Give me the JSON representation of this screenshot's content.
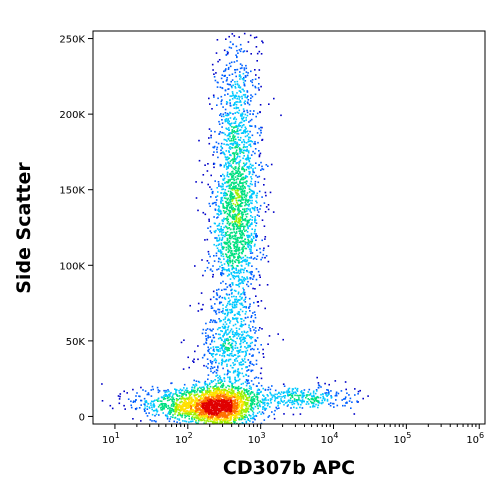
{
  "chart_data": {
    "type": "scatter",
    "subtype": "flow-cytometry-density-dot-plot",
    "xlabel": "CD307b APC",
    "ylabel": "Side Scatter",
    "x_scale": "log",
    "y_scale": "linear",
    "xlim": [
      5,
      1200000
    ],
    "ylim": [
      -5000,
      255000
    ],
    "x_ticks": [
      {
        "value": 10,
        "base": "10",
        "exp": "1"
      },
      {
        "value": 100,
        "base": "10",
        "exp": "2"
      },
      {
        "value": 1000,
        "base": "10",
        "exp": "3"
      },
      {
        "value": 10000,
        "base": "10",
        "exp": "4"
      },
      {
        "value": 100000,
        "base": "10",
        "exp": "5"
      },
      {
        "value": 1000000,
        "base": "10",
        "exp": "6"
      }
    ],
    "y_ticks": [
      {
        "value": 0,
        "label": "0"
      },
      {
        "value": 50000,
        "label": "50K"
      },
      {
        "value": 100000,
        "label": "100K"
      },
      {
        "value": 150000,
        "label": "150K"
      },
      {
        "value": 200000,
        "label": "200K"
      },
      {
        "value": 250000,
        "label": "250K"
      }
    ],
    "populations": [
      {
        "x_center": 250,
        "x_spread_decades": 0.28,
        "y_center": 7000,
        "y_spread": 7000,
        "weight": 0.34
      },
      {
        "x_center": 450,
        "x_spread_decades": 0.17,
        "y_center": 130000,
        "y_spread": 32000,
        "weight": 0.3
      },
      {
        "x_center": 480,
        "x_spread_decades": 0.16,
        "y_center": 200000,
        "y_spread": 30000,
        "weight": 0.1
      },
      {
        "x_center": 380,
        "x_spread_decades": 0.22,
        "y_center": 45000,
        "y_spread": 18000,
        "weight": 0.12
      },
      {
        "x_center": 3000,
        "x_spread_decades": 0.4,
        "y_center": 13000,
        "y_spread": 4000,
        "weight": 0.07
      },
      {
        "x_center": 60,
        "x_spread_decades": 0.3,
        "y_center": 9000,
        "y_spread": 6000,
        "weight": 0.07
      }
    ],
    "colormap": [
      "#0000c8",
      "#0060ff",
      "#00c8ff",
      "#00e080",
      "#a0f000",
      "#ffe000",
      "#ff7000",
      "#e00000"
    ],
    "grid": false,
    "legend": "none"
  }
}
